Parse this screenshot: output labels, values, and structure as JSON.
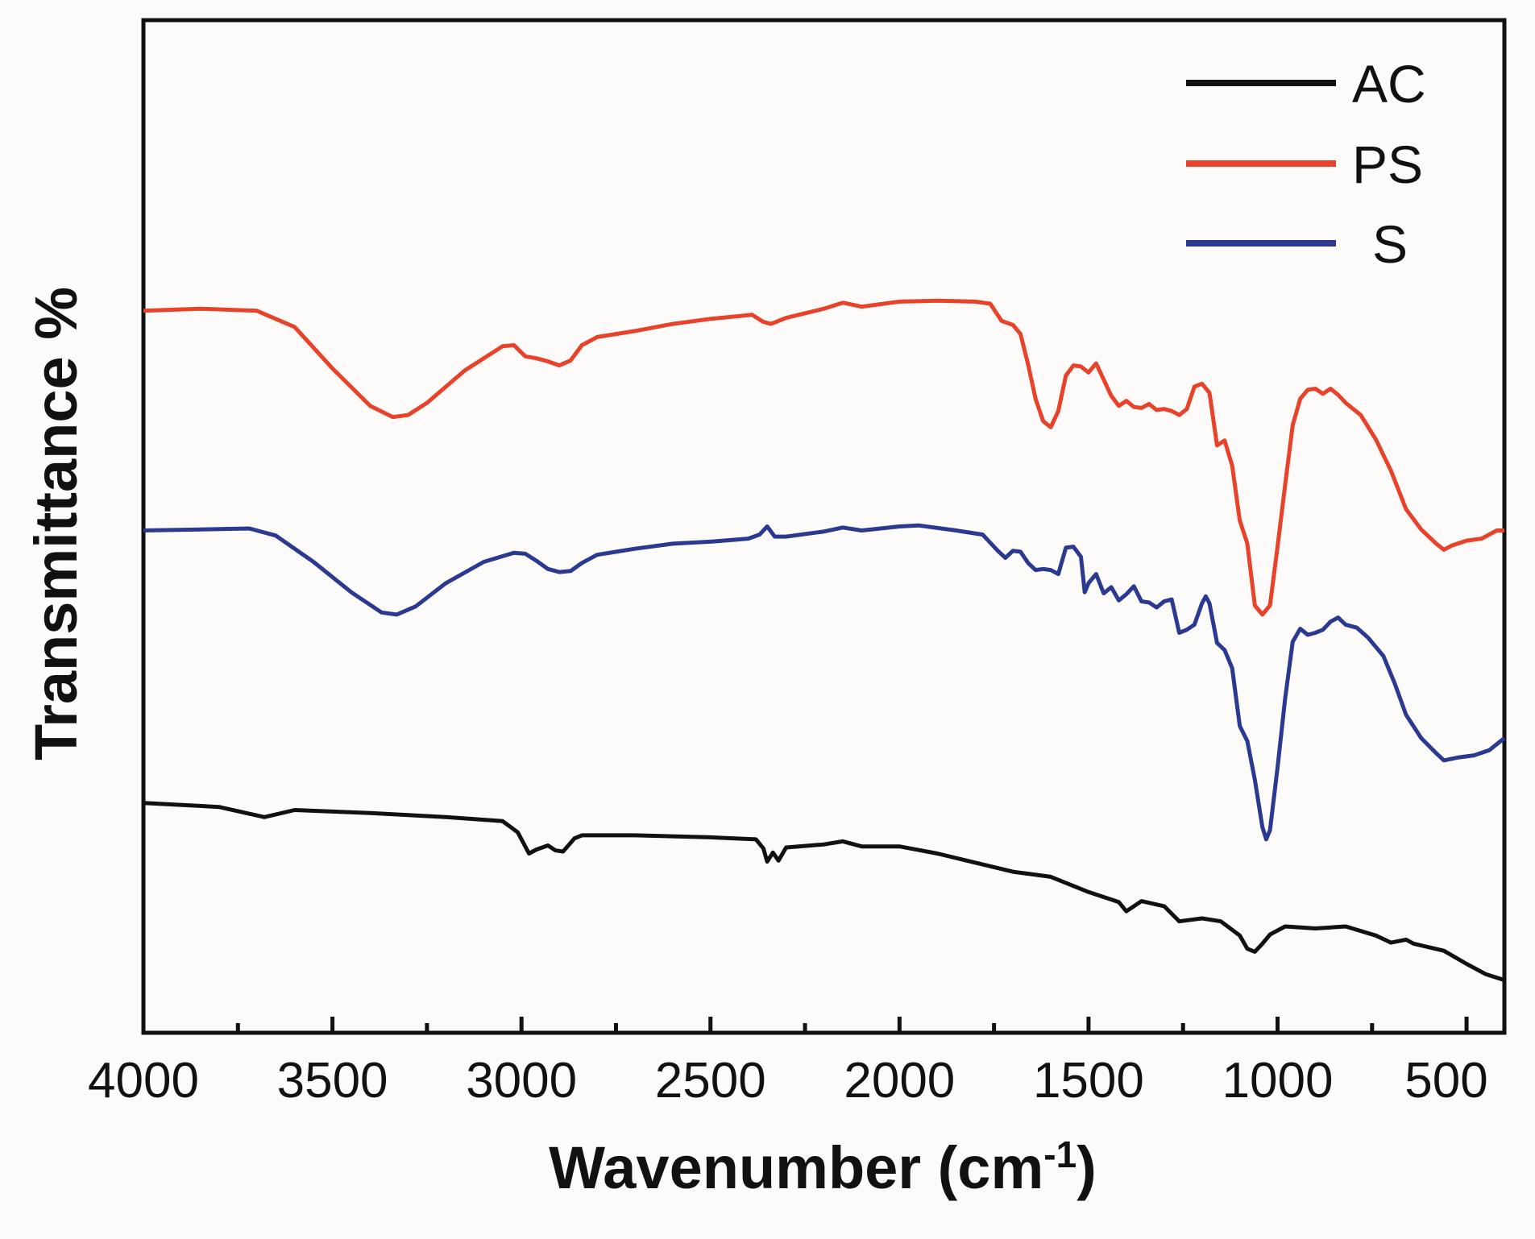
{
  "chart_data": {
    "type": "line",
    "title": "",
    "xlabel": "Wavenumber (cm",
    "xlabel_sup": "-1",
    "xlabel_close": ")",
    "ylabel": "Transmittance %",
    "xlim": [
      4000,
      400
    ],
    "ylim": [
      0,
      100
    ],
    "x_ticks": [
      4000,
      3500,
      3000,
      2500,
      2000,
      1500,
      1000,
      500
    ],
    "x_tick_labels": [
      "4000",
      "3500",
      "3000",
      "2500",
      "2000",
      "1500",
      "1000",
      "500"
    ],
    "x_minor_ticks": [
      3750,
      3250,
      2750,
      2250,
      1750,
      1250,
      750
    ],
    "y_tick_labels": "none",
    "grid": false,
    "legend_position": "top-right",
    "series": [
      {
        "name": "AC",
        "color": "#111111",
        "points": [
          [
            4000,
            22.7
          ],
          [
            3800,
            22.3
          ],
          [
            3680,
            21.3
          ],
          [
            3600,
            22.0
          ],
          [
            3400,
            21.7
          ],
          [
            3200,
            21.3
          ],
          [
            3050,
            20.9
          ],
          [
            3010,
            19.8
          ],
          [
            2980,
            17.7
          ],
          [
            2960,
            18.1
          ],
          [
            2930,
            18.5
          ],
          [
            2910,
            18.0
          ],
          [
            2890,
            17.9
          ],
          [
            2860,
            19.2
          ],
          [
            2840,
            19.5
          ],
          [
            2700,
            19.5
          ],
          [
            2500,
            19.3
          ],
          [
            2380,
            19.1
          ],
          [
            2360,
            18.2
          ],
          [
            2350,
            16.9
          ],
          [
            2335,
            17.8
          ],
          [
            2320,
            17.0
          ],
          [
            2300,
            18.3
          ],
          [
            2200,
            18.6
          ],
          [
            2150,
            18.9
          ],
          [
            2100,
            18.4
          ],
          [
            2000,
            18.4
          ],
          [
            1900,
            17.7
          ],
          [
            1800,
            16.8
          ],
          [
            1700,
            15.9
          ],
          [
            1600,
            15.4
          ],
          [
            1500,
            13.9
          ],
          [
            1420,
            12.9
          ],
          [
            1400,
            12.0
          ],
          [
            1380,
            12.5
          ],
          [
            1360,
            13.0
          ],
          [
            1300,
            12.5
          ],
          [
            1260,
            11.0
          ],
          [
            1200,
            11.3
          ],
          [
            1150,
            11.0
          ],
          [
            1100,
            9.6
          ],
          [
            1080,
            8.3
          ],
          [
            1060,
            8.0
          ],
          [
            1040,
            8.8
          ],
          [
            1020,
            9.7
          ],
          [
            980,
            10.5
          ],
          [
            900,
            10.3
          ],
          [
            820,
            10.5
          ],
          [
            740,
            9.6
          ],
          [
            700,
            8.9
          ],
          [
            660,
            9.2
          ],
          [
            640,
            8.8
          ],
          [
            560,
            8.1
          ],
          [
            500,
            6.8
          ],
          [
            450,
            5.8
          ],
          [
            400,
            5.2
          ]
        ]
      },
      {
        "name": "PS",
        "color": "#e8432a",
        "points": [
          [
            4000,
            71.3
          ],
          [
            3850,
            71.5
          ],
          [
            3700,
            71.3
          ],
          [
            3600,
            69.7
          ],
          [
            3500,
            65.6
          ],
          [
            3400,
            61.9
          ],
          [
            3340,
            60.8
          ],
          [
            3300,
            61.0
          ],
          [
            3250,
            62.2
          ],
          [
            3150,
            65.4
          ],
          [
            3050,
            67.8
          ],
          [
            3020,
            67.9
          ],
          [
            2990,
            66.8
          ],
          [
            2960,
            66.6
          ],
          [
            2930,
            66.3
          ],
          [
            2900,
            65.9
          ],
          [
            2870,
            66.4
          ],
          [
            2840,
            67.9
          ],
          [
            2800,
            68.7
          ],
          [
            2700,
            69.3
          ],
          [
            2600,
            70.0
          ],
          [
            2500,
            70.5
          ],
          [
            2390,
            70.9
          ],
          [
            2360,
            70.2
          ],
          [
            2340,
            70.0
          ],
          [
            2300,
            70.6
          ],
          [
            2200,
            71.5
          ],
          [
            2150,
            72.1
          ],
          [
            2100,
            71.7
          ],
          [
            2000,
            72.2
          ],
          [
            1900,
            72.3
          ],
          [
            1800,
            72.2
          ],
          [
            1760,
            72.0
          ],
          [
            1730,
            70.3
          ],
          [
            1700,
            69.9
          ],
          [
            1680,
            69.0
          ],
          [
            1660,
            66.0
          ],
          [
            1640,
            62.6
          ],
          [
            1620,
            60.4
          ],
          [
            1600,
            59.8
          ],
          [
            1580,
            61.4
          ],
          [
            1560,
            64.9
          ],
          [
            1540,
            65.9
          ],
          [
            1520,
            65.8
          ],
          [
            1500,
            65.2
          ],
          [
            1480,
            66.1
          ],
          [
            1460,
            64.5
          ],
          [
            1440,
            62.9
          ],
          [
            1420,
            61.9
          ],
          [
            1400,
            62.4
          ],
          [
            1380,
            61.8
          ],
          [
            1360,
            61.7
          ],
          [
            1340,
            62.1
          ],
          [
            1320,
            61.5
          ],
          [
            1300,
            61.6
          ],
          [
            1280,
            61.4
          ],
          [
            1260,
            61.0
          ],
          [
            1240,
            61.6
          ],
          [
            1220,
            63.8
          ],
          [
            1200,
            64.1
          ],
          [
            1180,
            63.2
          ],
          [
            1160,
            58.0
          ],
          [
            1140,
            58.5
          ],
          [
            1120,
            56.0
          ],
          [
            1100,
            50.6
          ],
          [
            1080,
            48.3
          ],
          [
            1060,
            42.2
          ],
          [
            1040,
            41.3
          ],
          [
            1020,
            42.2
          ],
          [
            1000,
            48.0
          ],
          [
            980,
            54.1
          ],
          [
            960,
            60.0
          ],
          [
            940,
            62.6
          ],
          [
            920,
            63.5
          ],
          [
            900,
            63.6
          ],
          [
            880,
            63.1
          ],
          [
            860,
            63.6
          ],
          [
            840,
            63.0
          ],
          [
            820,
            62.2
          ],
          [
            780,
            61.0
          ],
          [
            740,
            58.6
          ],
          [
            700,
            55.5
          ],
          [
            660,
            51.7
          ],
          [
            620,
            49.7
          ],
          [
            580,
            48.3
          ],
          [
            560,
            47.7
          ],
          [
            540,
            48.1
          ],
          [
            500,
            48.6
          ],
          [
            460,
            48.8
          ],
          [
            420,
            49.6
          ],
          [
            400,
            49.6
          ]
        ]
      },
      {
        "name": "S",
        "color": "#2b3990",
        "points": [
          [
            4000,
            49.6
          ],
          [
            3850,
            49.7
          ],
          [
            3720,
            49.8
          ],
          [
            3650,
            49.1
          ],
          [
            3550,
            46.5
          ],
          [
            3450,
            43.5
          ],
          [
            3370,
            41.5
          ],
          [
            3330,
            41.3
          ],
          [
            3280,
            42.1
          ],
          [
            3200,
            44.4
          ],
          [
            3100,
            46.5
          ],
          [
            3020,
            47.4
          ],
          [
            2990,
            47.3
          ],
          [
            2960,
            46.6
          ],
          [
            2930,
            45.8
          ],
          [
            2900,
            45.5
          ],
          [
            2870,
            45.6
          ],
          [
            2840,
            46.4
          ],
          [
            2800,
            47.2
          ],
          [
            2700,
            47.8
          ],
          [
            2600,
            48.3
          ],
          [
            2500,
            48.5
          ],
          [
            2400,
            48.8
          ],
          [
            2370,
            49.2
          ],
          [
            2350,
            50.0
          ],
          [
            2330,
            49.0
          ],
          [
            2300,
            49.0
          ],
          [
            2200,
            49.5
          ],
          [
            2150,
            49.9
          ],
          [
            2100,
            49.6
          ],
          [
            2000,
            50.0
          ],
          [
            1950,
            50.1
          ],
          [
            1850,
            49.6
          ],
          [
            1780,
            49.2
          ],
          [
            1740,
            47.6
          ],
          [
            1720,
            46.9
          ],
          [
            1700,
            47.6
          ],
          [
            1680,
            47.5
          ],
          [
            1660,
            46.4
          ],
          [
            1640,
            45.7
          ],
          [
            1620,
            45.8
          ],
          [
            1600,
            45.7
          ],
          [
            1580,
            45.3
          ],
          [
            1560,
            47.9
          ],
          [
            1540,
            48.0
          ],
          [
            1520,
            47.0
          ],
          [
            1510,
            43.5
          ],
          [
            1500,
            44.4
          ],
          [
            1480,
            45.3
          ],
          [
            1460,
            43.4
          ],
          [
            1440,
            44.0
          ],
          [
            1420,
            42.7
          ],
          [
            1400,
            43.3
          ],
          [
            1380,
            44.1
          ],
          [
            1360,
            42.6
          ],
          [
            1340,
            42.5
          ],
          [
            1320,
            42.0
          ],
          [
            1300,
            42.6
          ],
          [
            1280,
            42.8
          ],
          [
            1260,
            39.5
          ],
          [
            1240,
            39.8
          ],
          [
            1220,
            40.3
          ],
          [
            1200,
            42.4
          ],
          [
            1190,
            43.1
          ],
          [
            1180,
            42.4
          ],
          [
            1160,
            38.5
          ],
          [
            1140,
            37.8
          ],
          [
            1120,
            36.0
          ],
          [
            1100,
            30.3
          ],
          [
            1080,
            28.8
          ],
          [
            1060,
            25.0
          ],
          [
            1040,
            20.3
          ],
          [
            1030,
            19.1
          ],
          [
            1020,
            20.0
          ],
          [
            1000,
            26.2
          ],
          [
            980,
            33.0
          ],
          [
            960,
            38.6
          ],
          [
            940,
            39.9
          ],
          [
            920,
            39.3
          ],
          [
            900,
            39.5
          ],
          [
            880,
            39.8
          ],
          [
            860,
            40.6
          ],
          [
            840,
            41.0
          ],
          [
            820,
            40.3
          ],
          [
            790,
            40.0
          ],
          [
            760,
            39.0
          ],
          [
            720,
            37.2
          ],
          [
            690,
            34.5
          ],
          [
            660,
            31.4
          ],
          [
            620,
            29.1
          ],
          [
            580,
            27.6
          ],
          [
            560,
            26.9
          ],
          [
            520,
            27.2
          ],
          [
            480,
            27.4
          ],
          [
            440,
            27.9
          ],
          [
            400,
            29.1
          ]
        ]
      }
    ]
  }
}
